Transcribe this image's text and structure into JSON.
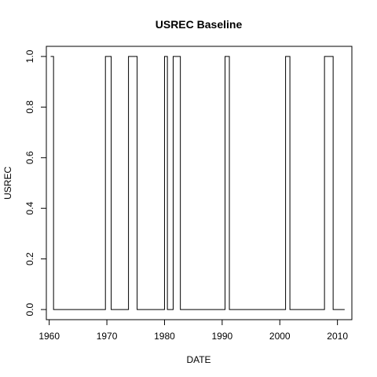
{
  "chart_data": {
    "type": "line",
    "line_style": "step",
    "title": "USREC Baseline",
    "xlabel": "DATE",
    "ylabel": "USREC",
    "xlim": [
      1959.5,
      2012.5
    ],
    "ylim": [
      -0.04,
      1.04
    ],
    "x_ticks": [
      1960,
      1970,
      1980,
      1990,
      2000,
      2010
    ],
    "x_tick_labels": [
      "1960",
      "1970",
      "1980",
      "1990",
      "2000",
      "2010"
    ],
    "y_ticks": [
      0,
      0.2,
      0.4,
      0.6,
      0.8,
      1.0
    ],
    "y_tick_labels": [
      "0.0",
      "0.2",
      "0.4",
      "0.6",
      "0.8",
      "1.0"
    ],
    "grid": false,
    "series": [
      {
        "color": "#000000",
        "x": [
          1960.25,
          1960.75,
          1960.75,
          1969.75,
          1969.75,
          1970.75,
          1970.75,
          1973.75,
          1973.75,
          1975.25,
          1975.25,
          1980.0,
          1980.0,
          1980.5,
          1980.5,
          1981.5,
          1981.5,
          1982.75,
          1982.75,
          1990.5,
          1990.5,
          1991.25,
          1991.25,
          2001.0,
          2001.0,
          2001.75,
          2001.75,
          2007.75,
          2007.75,
          2009.25,
          2009.25,
          2011.25
        ],
        "y": [
          1,
          1,
          0,
          0,
          1,
          1,
          0,
          0,
          1,
          1,
          0,
          0,
          1,
          1,
          0,
          0,
          1,
          1,
          0,
          0,
          1,
          1,
          0,
          0,
          1,
          1,
          0,
          0,
          1,
          1,
          0,
          0
        ]
      }
    ]
  }
}
